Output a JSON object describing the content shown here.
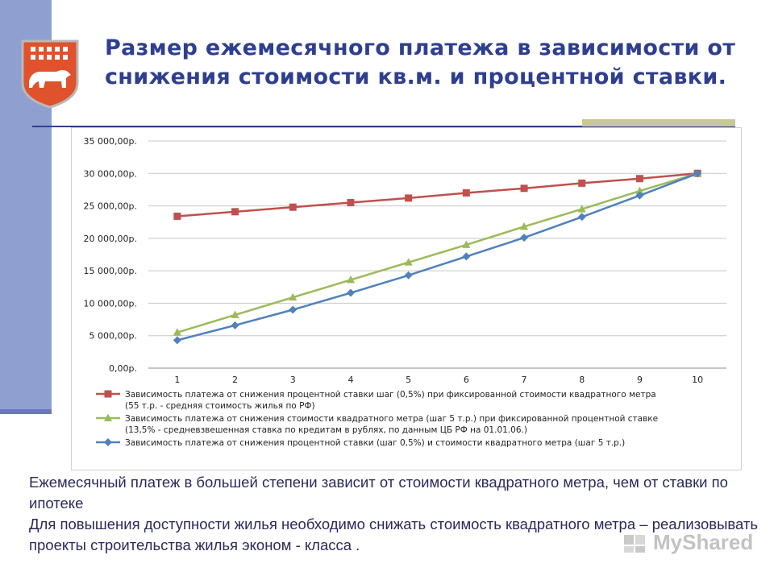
{
  "slide": {
    "title": "Размер ежемесячного платежа в зависимости от снижения стоимости кв.м. и процентной ставки.",
    "paragraphs": [
      "Ежемесячный платеж в большей степени зависит от стоимости квадратного метра, чем от ставки по ипотеке",
      "Для повышения доступности жилья необходимо снижать стоимость квадратного метра – реализовывать проекты строительства жилья эконом - класса ."
    ],
    "watermark": "MyShared",
    "accent_color": "#2f3f8f"
  },
  "chart_data": {
    "type": "line",
    "title": "",
    "xlabel": "",
    "ylabel": "",
    "categories": [
      "1",
      "2",
      "3",
      "4",
      "5",
      "6",
      "7",
      "8",
      "9",
      "10"
    ],
    "ylim": [
      0,
      35000
    ],
    "y_ticks": [
      0,
      5000,
      10000,
      15000,
      20000,
      25000,
      30000,
      35000
    ],
    "y_tick_labels": [
      "0,00р.",
      "5 000,00р.",
      "10 000,00р.",
      "15 000,00р.",
      "20 000,00р.",
      "25 000,00р.",
      "30 000,00р.",
      "35 000,00р."
    ],
    "grid": true,
    "legend_position": "bottom",
    "series": [
      {
        "name": "Зависимость платежа от снижения процентной ставки шаг (0,5%) при фиксированной стоимости квадратного метра (55 т.р. - средняя стоимость жилья по РФ)",
        "legend_lines": [
          "Зависимость платежа от снижения процентной ставки шаг (0,5%) при фиксированной стоимости квадратного метра",
          "(55 т.р. - средняя стоимость жилья по РФ)"
        ],
        "color": "#c0504d",
        "marker": "square",
        "values": [
          23400,
          24100,
          24800,
          25500,
          26200,
          27000,
          27700,
          28500,
          29200,
          30000
        ]
      },
      {
        "name": "Зависимость платежа от снижения стоимости квадратного метра (шаг 5 т.р.) при фиксированной процентной ставке (13,5% - средневзвешенная ставка по кредитам в рублях, по данным ЦБ РФ на 01.01.06.)",
        "legend_lines": [
          "Зависимость платежа от снижения стоимости квадратного метра (шаг 5 т.р.) при фиксированной процентной ставке",
          "(13,5% - средневзвешенная ставка по кредитам в рублях, по данным ЦБ РФ на 01.01.06.)"
        ],
        "color": "#9bbb59",
        "marker": "triangle",
        "values": [
          5500,
          8200,
          10900,
          13600,
          16300,
          19000,
          21800,
          24500,
          27300,
          30000
        ]
      },
      {
        "name": "Зависимость платежа от снижения процентной ставки (шаг 0,5%) и стоимости квадратного метра (шаг 5 т.р.)",
        "legend_lines": [
          "Зависимость платежа от снижения процентной ставки (шаг 0,5%) и стоимости квадратного метра (шаг 5 т.р.)"
        ],
        "color": "#4f81bd",
        "marker": "diamond",
        "values": [
          4300,
          6600,
          9000,
          11600,
          14300,
          17200,
          20100,
          23300,
          26600,
          30000
        ]
      }
    ]
  }
}
